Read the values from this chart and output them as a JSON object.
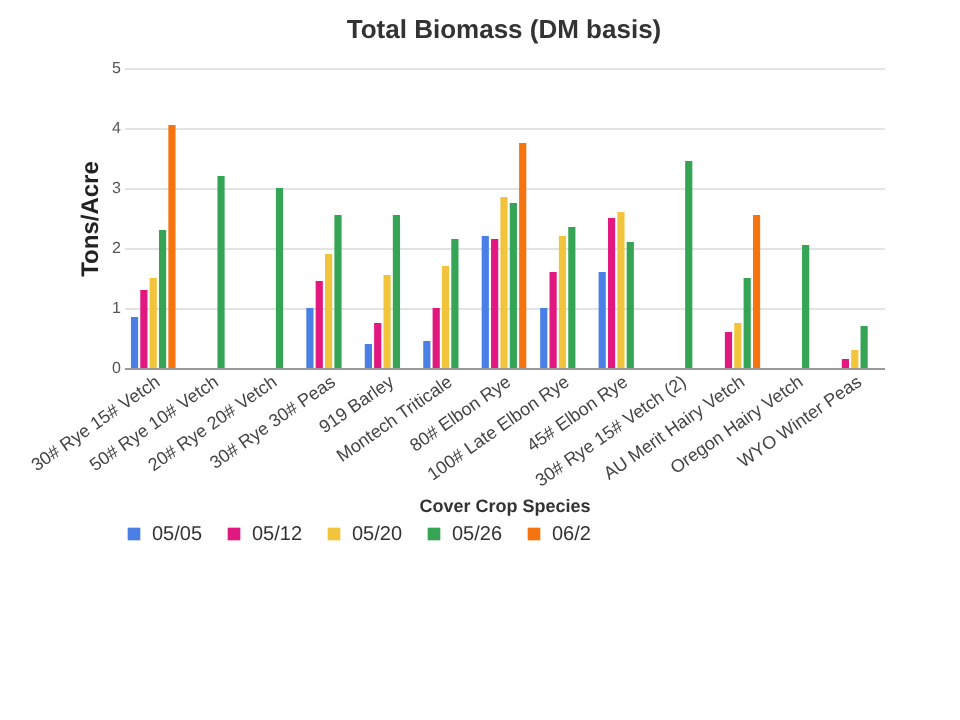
{
  "chart_data": {
    "type": "bar",
    "title": "Total Biomass (DM basis)",
    "xlabel": "Cover Crop Species",
    "ylabel": "Tons/Acre",
    "categories": [
      "30# Rye 15# Vetch",
      "50# Rye 10# Vetch",
      "20# Rye 20# Vetch",
      "30# Rye 30# Peas",
      "919 Barley",
      "Montech Triticale",
      "80# Elbon Rye",
      "100# Late Elbon Rye",
      "45# Elbon Rye",
      "30# Rye 15# Vetch (2)",
      "AU Merit Hairy Vetch",
      "Oregon Hairy Vetch",
      "WYO Winter Peas"
    ],
    "series": [
      {
        "name": "05/05",
        "color": "#4a7fe6",
        "values": [
          0.85,
          null,
          null,
          1.0,
          0.4,
          0.45,
          2.2,
          1.0,
          1.6,
          null,
          null,
          null,
          null
        ]
      },
      {
        "name": "05/12",
        "color": "#e0187f",
        "values": [
          1.3,
          null,
          null,
          1.45,
          0.75,
          1.0,
          2.15,
          1.6,
          2.5,
          null,
          0.6,
          null,
          0.15
        ]
      },
      {
        "name": "05/20",
        "color": "#f2c43c",
        "values": [
          1.5,
          null,
          null,
          1.9,
          1.55,
          1.7,
          2.85,
          2.2,
          2.6,
          null,
          0.75,
          null,
          0.3
        ]
      },
      {
        "name": "05/26",
        "color": "#35a555",
        "values": [
          2.3,
          3.2,
          3.0,
          2.55,
          2.55,
          2.15,
          2.75,
          2.35,
          2.1,
          3.45,
          1.5,
          2.05,
          0.7
        ]
      },
      {
        "name": "06/2",
        "color": "#f5740f",
        "values": [
          4.05,
          null,
          null,
          null,
          null,
          null,
          3.75,
          null,
          null,
          null,
          2.55,
          null,
          null
        ]
      }
    ],
    "ylim": [
      0,
      5
    ],
    "yticks": [
      0,
      1,
      2,
      3,
      4,
      5
    ],
    "grid": "y",
    "legend": "bottom"
  }
}
